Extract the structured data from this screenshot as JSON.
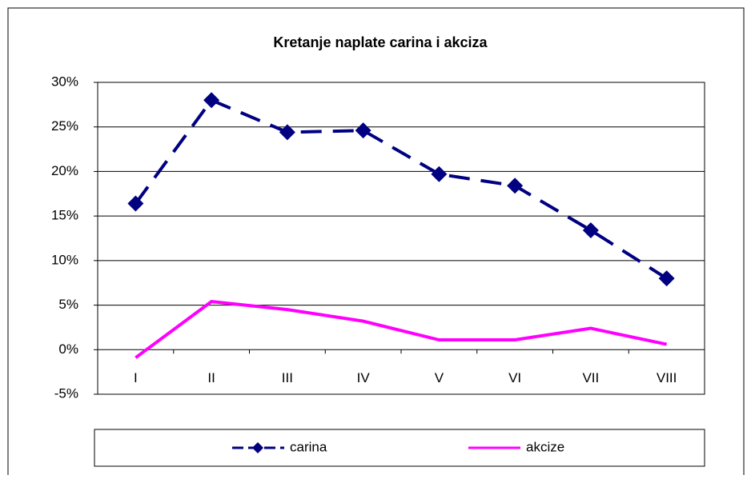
{
  "chart_data": {
    "type": "line",
    "title": "Kretanje naplate carina i akciza",
    "categories": [
      "I",
      "II",
      "III",
      "IV",
      "V",
      "VI",
      "VII",
      "VIII"
    ],
    "series": [
      {
        "name": "carina",
        "color": "#000080",
        "values": [
          16.4,
          28.0,
          24.4,
          24.6,
          19.7,
          18.4,
          13.4,
          8.0
        ]
      },
      {
        "name": "akcize",
        "color": "#ff00ff",
        "values": [
          -0.9,
          5.4,
          4.5,
          3.2,
          1.1,
          1.1,
          2.4,
          0.6
        ]
      }
    ],
    "ylim": [
      -5,
      30
    ],
    "yticks": [
      {
        "value": -5,
        "label": "-5%"
      },
      {
        "value": 0,
        "label": "0%"
      },
      {
        "value": 5,
        "label": "5%"
      },
      {
        "value": 10,
        "label": "10%"
      },
      {
        "value": 15,
        "label": "15%"
      },
      {
        "value": 20,
        "label": "20%"
      },
      {
        "value": 25,
        "label": "25%"
      },
      {
        "value": 30,
        "label": "30%"
      }
    ],
    "grid": true,
    "legend": "bottom"
  }
}
